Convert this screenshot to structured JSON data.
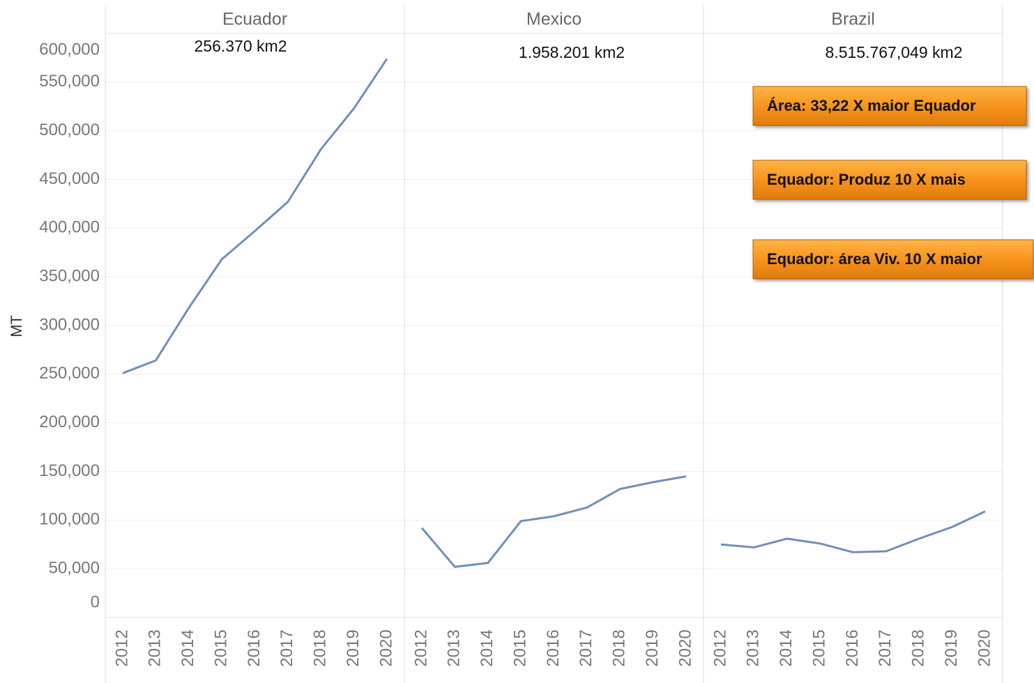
{
  "chart_data": {
    "type": "line",
    "y_label": "MT",
    "x": [
      2012,
      2013,
      2014,
      2015,
      2016,
      2017,
      2018,
      2019,
      2020
    ],
    "ylim": [
      0,
      600000
    ],
    "yticks": [
      0,
      {
        "value": 50000,
        "label": "50,000"
      },
      {
        "value": 100000,
        "label": "100,000"
      },
      {
        "value": 150000,
        "label": "150,000"
      },
      {
        "value": 200000,
        "label": "200,000"
      },
      {
        "value": 250000,
        "label": "250,000"
      },
      {
        "value": 300000,
        "label": "300,000"
      },
      {
        "value": 350000,
        "label": "350,000"
      },
      {
        "value": 400000,
        "label": "400,000"
      },
      {
        "value": 450000,
        "label": "450,000"
      },
      {
        "value": 500000,
        "label": "500,000"
      },
      {
        "value": 550000,
        "label": "550,000"
      },
      {
        "value": 600000,
        "label": "600,000"
      }
    ],
    "grid": true,
    "color": "#6f8fb8",
    "series": [
      {
        "name": "Ecuador",
        "area": "256.370 km2",
        "values": [
          251000,
          264000,
          318000,
          368000,
          397000,
          427000,
          481000,
          523000,
          574000
        ]
      },
      {
        "name": "Mexico",
        "area": "1.958.201 km2",
        "values": [
          92000,
          52000,
          56000,
          99000,
          104000,
          113000,
          132000,
          139000,
          145000
        ]
      },
      {
        "name": "Brazil",
        "area": "8.515.767,049 km2",
        "values": [
          75000,
          72000,
          81000,
          76000,
          67000,
          68000,
          81000,
          93000,
          109000
        ]
      }
    ],
    "annotations": [
      "Área: 33,22 X maior Equador",
      "Equador: Produz 10 X mais",
      "Equador: área Viv. 10 X maior"
    ]
  }
}
